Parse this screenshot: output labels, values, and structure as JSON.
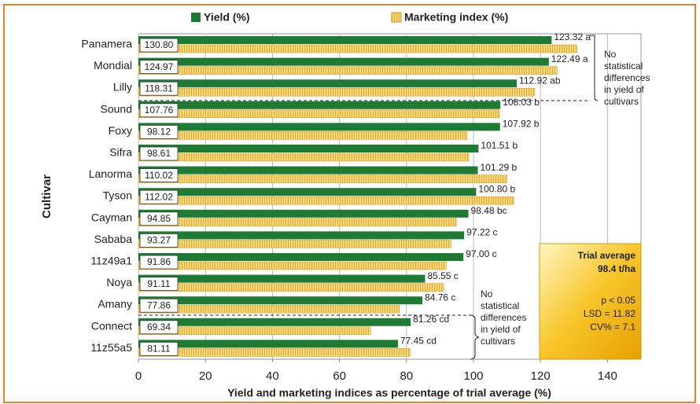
{
  "chart_data": {
    "type": "bar",
    "orientation": "horizontal",
    "x_label": "Yield and marketing indices as percentage of trial average (%)",
    "y_label": "Cultivar",
    "categories": [
      "Panamera",
      "Mondial",
      "Lilly",
      "Sound",
      "Foxy",
      "Sifra",
      "Lanorma",
      "Tyson",
      "Cayman",
      "Sababa",
      "11z49a1",
      "Noya",
      "Amany",
      "Connect",
      "11z55a5"
    ],
    "series": [
      {
        "name": "Yield (%)",
        "color": "#1f7a33",
        "values": [
          123.32,
          122.49,
          112.92,
          108.03,
          107.92,
          101.51,
          101.29,
          100.8,
          98.48,
          97.22,
          97.0,
          85.55,
          84.76,
          81.26,
          77.45
        ],
        "value_labels": [
          "123.32 a",
          "122.49 a",
          "112.92 ab",
          "108.03 b",
          "107.92 b",
          "101.51 b",
          "101.29 b",
          "100.80 b",
          "98.48 bc",
          "97.22 c",
          "97.00 c",
          "85.55 c",
          "84.76 c",
          "81.26 cd",
          "77.45 cd"
        ]
      },
      {
        "name": "Marketing index (%)",
        "color": "#f3cf5a",
        "values": [
          130.8,
          124.97,
          118.31,
          107.76,
          98.12,
          98.61,
          110.02,
          112.02,
          94.85,
          93.27,
          91.86,
          91.11,
          77.86,
          69.34,
          81.11
        ],
        "value_labels": [
          "130.80",
          "124.97",
          "118.31",
          "107.76",
          "98.12",
          "98.61",
          "110.02",
          "112.02",
          "94.85",
          "93.27",
          "91.86",
          "91.11",
          "77.86",
          "69.34",
          "81.11"
        ]
      }
    ],
    "xlim": [
      0,
      150
    ],
    "xticks": [
      0,
      20,
      40,
      60,
      80,
      100,
      120,
      140
    ],
    "grid": true,
    "notes": [
      [
        "No",
        "statistical",
        "differences",
        "in yield of",
        "cultivars"
      ],
      [
        "No",
        "statistical",
        "differences",
        "in yield of",
        "cultivars"
      ]
    ],
    "summary_box": {
      "title": "Trial average",
      "subtitle": "98.4 t/ha",
      "lines": [
        "p < 0.05",
        "LSD = 11.82",
        "CV% = 7.1"
      ]
    }
  }
}
